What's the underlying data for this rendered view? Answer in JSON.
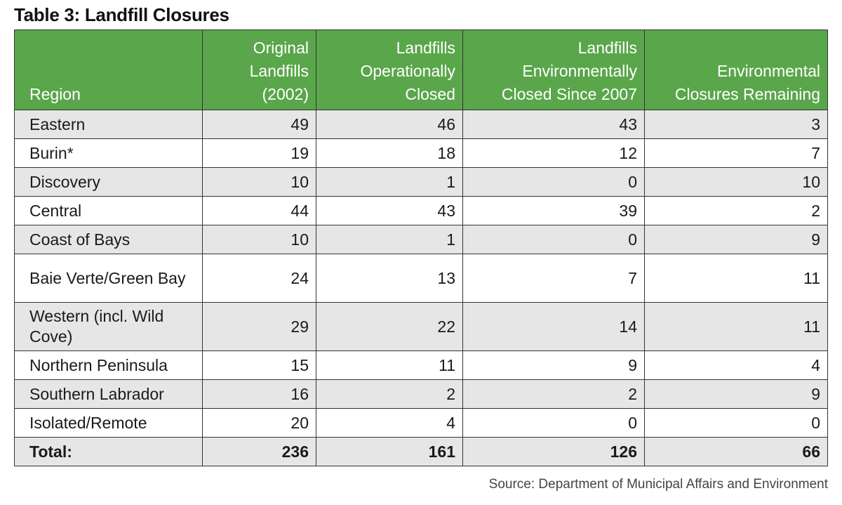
{
  "title": "Table 3: Landfill Closures",
  "headers": {
    "region": "Region",
    "original": [
      "Original",
      "Landfills",
      "(2002)"
    ],
    "operational": [
      "Landfills",
      "Operationally",
      "Closed"
    ],
    "environmental": [
      "Landfills",
      "Environmentally",
      "Closed Since 2007"
    ],
    "remaining": [
      "Environmental",
      "Closures Remaining"
    ]
  },
  "rows": [
    {
      "region": "Eastern",
      "original": "49",
      "operational": "46",
      "environmental": "43",
      "remaining": "3"
    },
    {
      "region": "Burin*",
      "original": "19",
      "operational": "18",
      "environmental": "12",
      "remaining": "7"
    },
    {
      "region": "Discovery",
      "original": "10",
      "operational": "1",
      "environmental": "0",
      "remaining": "10"
    },
    {
      "region": "Central",
      "original": "44",
      "operational": "43",
      "environmental": "39",
      "remaining": "2"
    },
    {
      "region": "Coast of Bays",
      "original": "10",
      "operational": "1",
      "environmental": "0",
      "remaining": "9"
    },
    {
      "region": "Baie Verte/Green Bay",
      "original": "24",
      "operational": "13",
      "environmental": "7",
      "remaining": "11"
    },
    {
      "region": "Western (incl. Wild Cove)",
      "original": "29",
      "operational": "22",
      "environmental": "14",
      "remaining": "11"
    },
    {
      "region": "Northern Peninsula",
      "original": "15",
      "operational": "11",
      "environmental": "9",
      "remaining": "4"
    },
    {
      "region": "Southern Labrador",
      "original": "16",
      "operational": "2",
      "environmental": "2",
      "remaining": "9"
    },
    {
      "region": "Isolated/Remote",
      "original": "20",
      "operational": "4",
      "environmental": "0",
      "remaining": "0"
    }
  ],
  "total": {
    "region": "Total:",
    "original": "236",
    "operational": "161",
    "environmental": "126",
    "remaining": "66"
  },
  "source": "Source: Department of Municipal Affairs and Environment"
}
